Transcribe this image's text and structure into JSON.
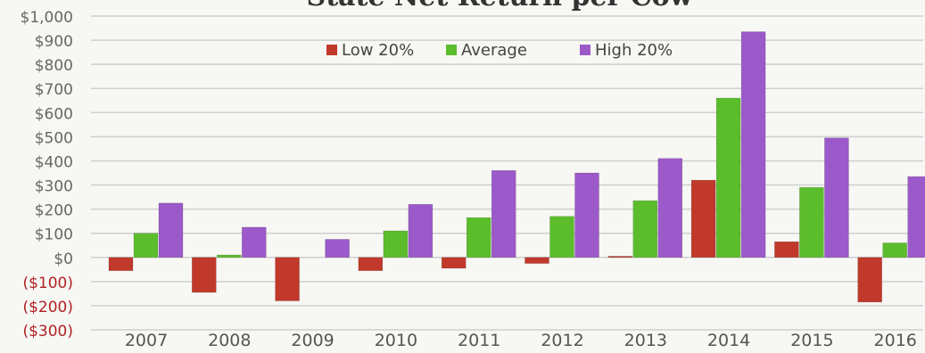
{
  "chart_data": {
    "type": "bar",
    "title": "State Net Return per Cow",
    "xlabel": "",
    "ylabel": "",
    "categories": [
      "2007",
      "2008",
      "2009",
      "2010",
      "2011",
      "2012",
      "2013",
      "2014",
      "2015",
      "2016"
    ],
    "series": [
      {
        "name": "Low 20%",
        "color": "#c0392b",
        "values": [
          -55,
          -145,
          -180,
          -55,
          -45,
          -25,
          5,
          320,
          65,
          -185
        ]
      },
      {
        "name": "Average",
        "color": "#5bbd2b",
        "values": [
          100,
          10,
          0,
          110,
          165,
          170,
          235,
          660,
          290,
          60
        ]
      },
      {
        "name": "High 20%",
        "color": "#9b59c9",
        "values": [
          225,
          125,
          75,
          220,
          360,
          350,
          410,
          935,
          495,
          335
        ]
      }
    ],
    "ylim": [
      -300,
      1000
    ],
    "ytick_step": 100,
    "ytick_labels": [
      "($300)",
      "($200)",
      "($100)",
      "$0",
      "$100",
      "$200",
      "$300",
      "$400",
      "$500",
      "$600",
      "$700",
      "$800",
      "$900",
      "$1,000"
    ],
    "ytick_colors": {
      "positive": "#666666",
      "negative": "#b22222"
    },
    "grid": true,
    "legend_position": "top-center",
    "category_label_color": "#555555"
  }
}
